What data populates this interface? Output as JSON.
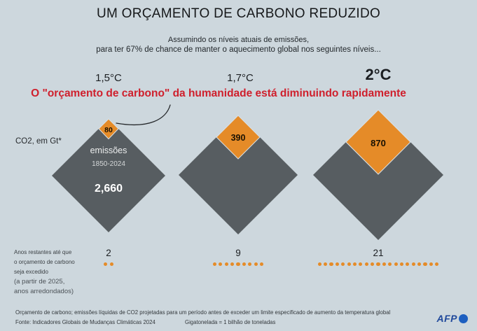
{
  "title": "UM ORÇAMENTO DE CARBONO REDUZIDO",
  "subtitle": {
    "line1": "Assumindo os níveis atuais de emissões,",
    "line2": "para ter 67% de chance de manter o aquecimento global nos seguintes níveis..."
  },
  "headline": "O \"orçamento de carbono\" da humanidade está diminuindo rapidamente",
  "unit_label": "CO2, em Gt*",
  "emissions": {
    "label": "emissões",
    "period": "1850-2024",
    "value": "2,660"
  },
  "scenarios": [
    {
      "temp": "1,5°C",
      "budget": "80",
      "years": "2",
      "years_dots": 2
    },
    {
      "temp": "1,7°C",
      "budget": "390",
      "years": "9",
      "years_dots": 9
    },
    {
      "temp": "2°C",
      "budget": "870",
      "years": "21",
      "years_dots": 21
    }
  ],
  "years_label": {
    "line1": "Anos restantes até que",
    "line2": "o orçamento de carbono",
    "line3": "seja excedido",
    "line4": "(a partir de 2025,",
    "line5": "anos arredondados)"
  },
  "footer": {
    "note": "Orçamento de carbono; emissões líquidas de CO2 projetadas para um período antes de exceder um limite especificado de aumento da temperatura global",
    "source": "Fonte: Indicadores Globais de Mudanças Climáticas 2024",
    "gigaton": "Gigatonelada = 1 bilhão de toneladas",
    "logo": "AFP"
  },
  "colors": {
    "background": "#cdd7dd",
    "diamond_gray": "#575d61",
    "diamond_orange": "#e58b28",
    "headline_red": "#cf1f2c",
    "afp_blue": "#20499b"
  },
  "chart_data": {
    "type": "proportional_area_diamonds",
    "title": "UM ORÇAMENTO DE CARBONO REDUZIDO",
    "unit": "Gt CO2",
    "probability_of_staying_below": "67%",
    "historical_emissions_1850_2024_gt": 2660,
    "scenarios": [
      {
        "warming_limit": "1,5°C",
        "remaining_budget_gt": 80,
        "years_remaining_from_2025": 2
      },
      {
        "warming_limit": "1,7°C",
        "remaining_budget_gt": 390,
        "years_remaining_from_2025": 9
      },
      {
        "warming_limit": "2°C",
        "remaining_budget_gt": 870,
        "years_remaining_from_2025": 21
      }
    ],
    "notes": [
      "Orçamento de carbono; emissões líquidas de CO2 projetadas para um período antes de exceder um limite especificado de aumento da temperatura global",
      "Gigatonelada = 1 bilhão de toneladas"
    ],
    "source": "Indicadores Globais de Mudanças Climáticas 2024"
  }
}
